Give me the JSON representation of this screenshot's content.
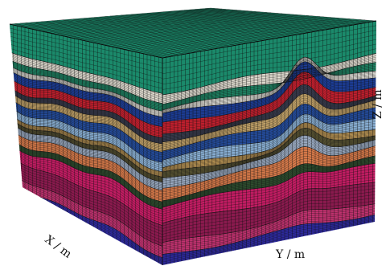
{
  "figure": {
    "axis_labels": {
      "x": "X / m",
      "y": "Y / m",
      "z": "Z / m"
    },
    "layers_top_to_bottom": [
      {
        "id": "L1",
        "color": "#1b8a6b"
      },
      {
        "id": "L2",
        "color": "#e6e2d6"
      },
      {
        "id": "L3",
        "color": "#1f8a68"
      },
      {
        "id": "L4",
        "color": "#f1efe7"
      },
      {
        "id": "L5",
        "color": "#1d3f9c"
      },
      {
        "id": "L6",
        "color": "#c8202f"
      },
      {
        "id": "L7",
        "color": "#3c3f52"
      },
      {
        "id": "L8",
        "color": "#c9a86c"
      },
      {
        "id": "L9",
        "color": "#254ea0"
      },
      {
        "id": "L10",
        "color": "#8eb6dc"
      },
      {
        "id": "L11",
        "color": "#c8a05a"
      },
      {
        "id": "L12",
        "color": "#5f5a36"
      },
      {
        "id": "L13",
        "color": "#9fb0c8"
      },
      {
        "id": "L14",
        "color": "#d77a4a"
      },
      {
        "id": "L15",
        "color": "#2f4f2f"
      },
      {
        "id": "L16",
        "color": "#c11c62"
      },
      {
        "id": "L17",
        "color": "#8a1a4e"
      },
      {
        "id": "L18",
        "color": "#c23270"
      },
      {
        "id": "L19",
        "color": "#2e2aa0"
      }
    ],
    "mesh_line_color": "#101010",
    "top_surface_color": "#1a8f6e"
  }
}
